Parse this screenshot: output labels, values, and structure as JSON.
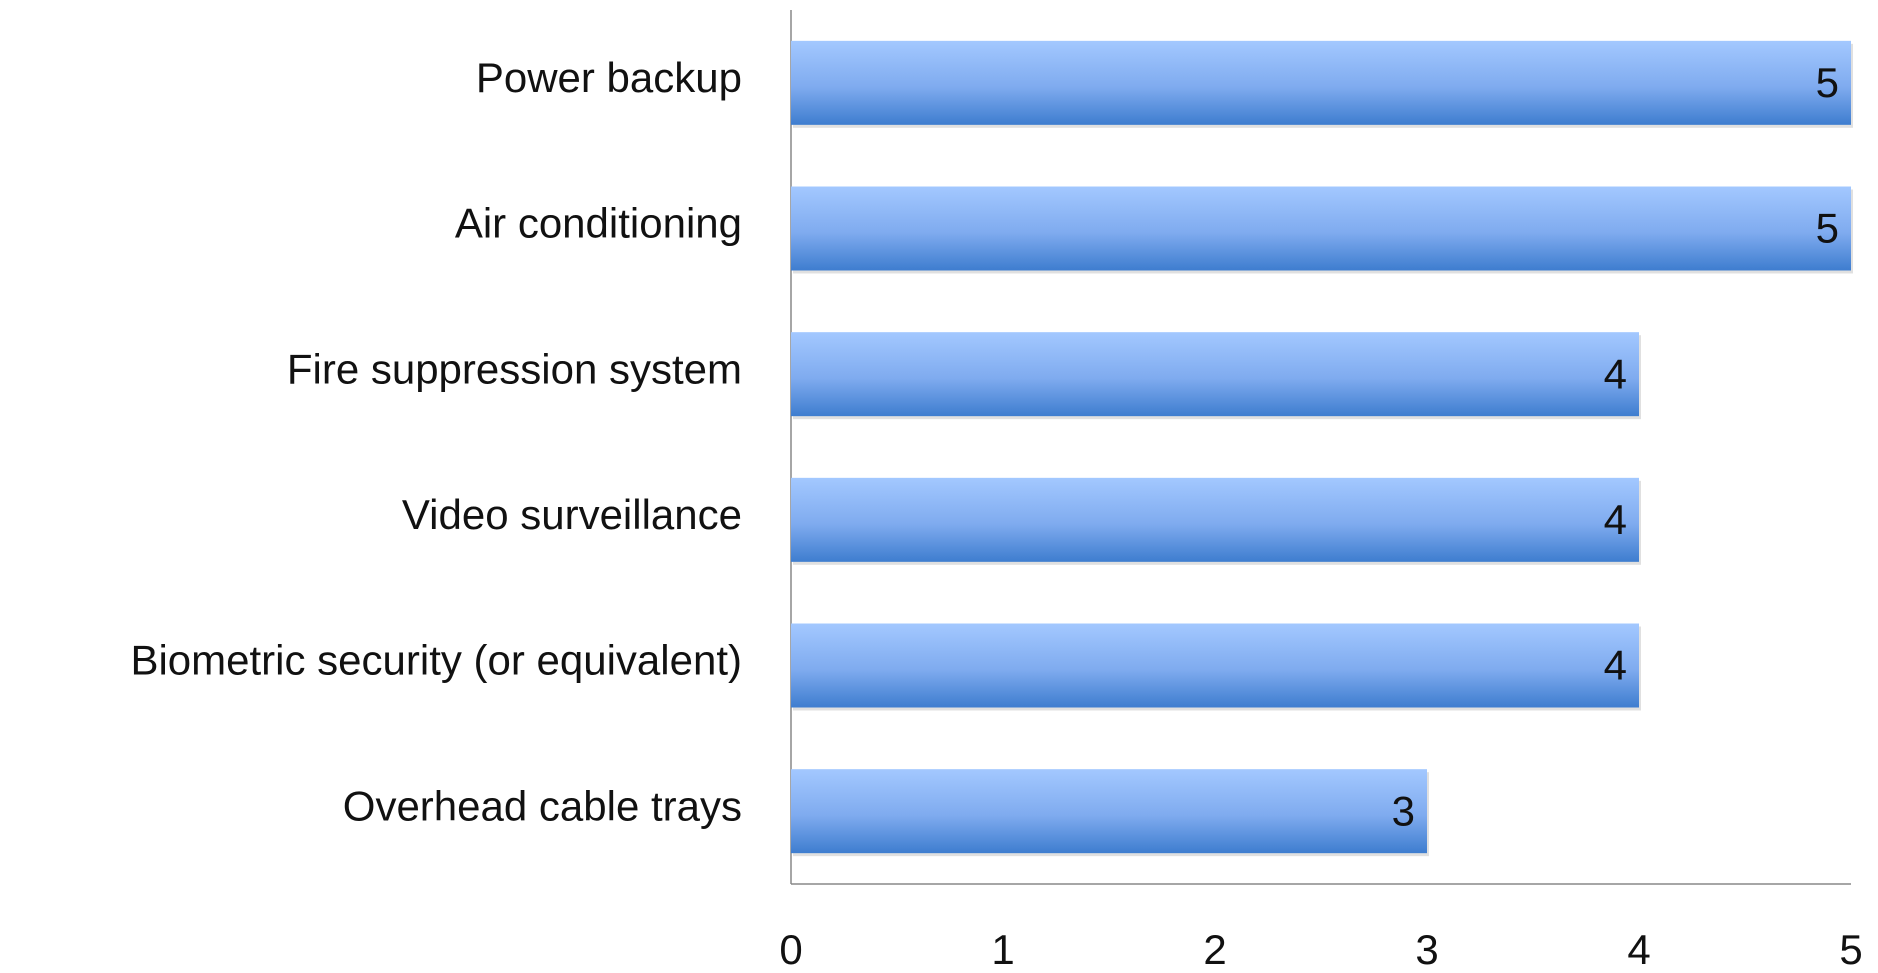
{
  "chart_data": {
    "type": "hbar",
    "categories": [
      "Power backup",
      "Air conditioning",
      "Fire suppression system",
      "Video surveillance",
      "Biometric security (or equivalent)",
      "Overhead cable trays"
    ],
    "values": [
      5,
      5,
      4,
      4,
      4,
      3
    ],
    "color": "#4a86d8",
    "xlim": [
      0,
      5
    ],
    "xticks": [
      0,
      1,
      2,
      3,
      4,
      5
    ],
    "grid": false
  }
}
